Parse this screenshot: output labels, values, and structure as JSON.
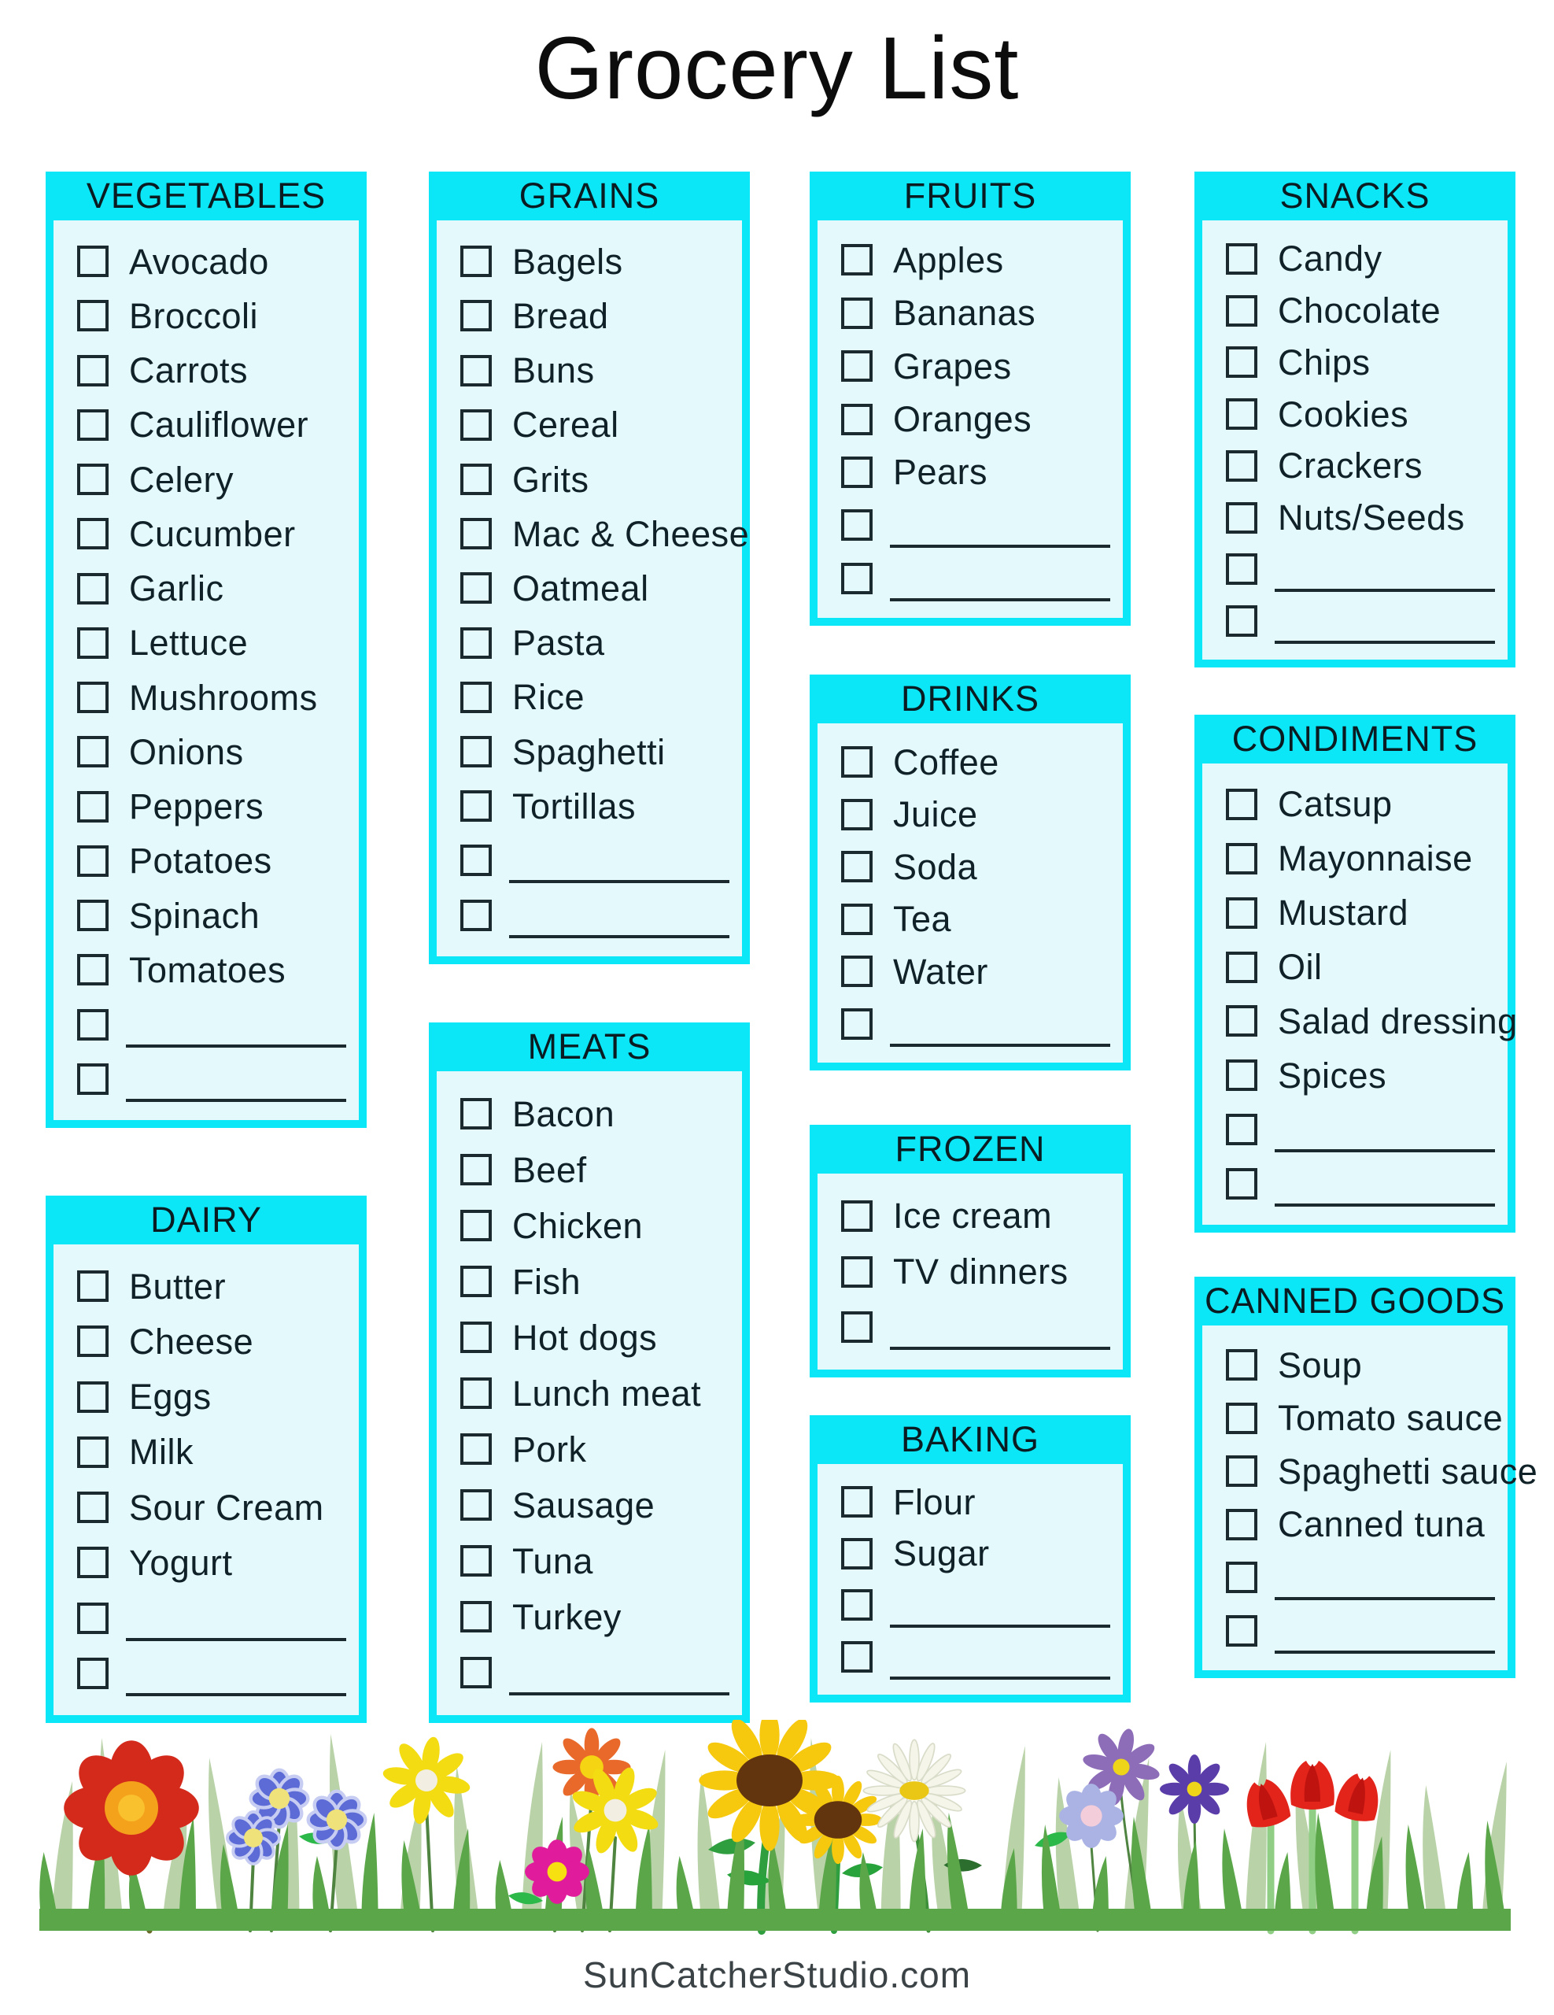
{
  "page": {
    "title": "Grocery List",
    "footer": "SunCatcherStudio.com"
  },
  "colors": {
    "accent_cyan": "#0be7f7",
    "panel_body": "#e3f9fc",
    "checkbox_ink": "#1b2a2f",
    "item_text": "#102227",
    "title_text": "#0c0c0c",
    "footer_text": "#3c4347",
    "grass_back": "#b9d2a8",
    "grass_front": "#5aa649",
    "flower_palette": [
      "#d42a1b",
      "#f4a21c",
      "#5c6bd6",
      "#e8692a",
      "#f3dc12",
      "#e01b9c",
      "#f6c80e",
      "#63350f",
      "#f5f5ea",
      "#8d6cb8",
      "#aab3e4",
      "#5a3da9",
      "#e3241b"
    ]
  },
  "icons": {
    "checkbox": "empty-square",
    "blank_line": "write-in-rule"
  },
  "categories": [
    {
      "name": "VEGETABLES",
      "items": [
        "Avocado",
        "Broccoli",
        "Carrots",
        "Cauliflower",
        "Celery",
        "Cucumber",
        "Garlic",
        "Lettuce",
        "Mushrooms",
        "Onions",
        "Peppers",
        "Potatoes",
        "Spinach",
        "Tomatoes"
      ],
      "blanks": 2
    },
    {
      "name": "DAIRY",
      "items": [
        "Butter",
        "Cheese",
        "Eggs",
        "Milk",
        "Sour Cream",
        "Yogurt"
      ],
      "blanks": 2
    },
    {
      "name": "GRAINS",
      "items": [
        "Bagels",
        "Bread",
        "Buns",
        "Cereal",
        "Grits",
        "Mac & Cheese",
        "Oatmeal",
        "Pasta",
        "Rice",
        "Spaghetti",
        "Tortillas"
      ],
      "blanks": 2
    },
    {
      "name": "MEATS",
      "items": [
        "Bacon",
        "Beef",
        "Chicken",
        "Fish",
        "Hot dogs",
        "Lunch meat",
        "Pork",
        "Sausage",
        "Tuna",
        "Turkey"
      ],
      "blanks": 1
    },
    {
      "name": "FRUITS",
      "items": [
        "Apples",
        "Bananas",
        "Grapes",
        "Oranges",
        "Pears"
      ],
      "blanks": 2
    },
    {
      "name": "DRINKS",
      "items": [
        "Coffee",
        "Juice",
        "Soda",
        "Tea",
        "Water"
      ],
      "blanks": 1
    },
    {
      "name": "FROZEN",
      "items": [
        "Ice cream",
        "TV dinners"
      ],
      "blanks": 1
    },
    {
      "name": "BAKING",
      "items": [
        "Flour",
        "Sugar"
      ],
      "blanks": 2
    },
    {
      "name": "SNACKS",
      "items": [
        "Candy",
        "Chocolate",
        "Chips",
        "Cookies",
        "Crackers",
        "Nuts/Seeds"
      ],
      "blanks": 2
    },
    {
      "name": "CONDIMENTS",
      "items": [
        "Catsup",
        "Mayonnaise",
        "Mustard",
        "Oil",
        "Salad dressing",
        "Spices"
      ],
      "blanks": 2
    },
    {
      "name": "CANNED GOODS",
      "items": [
        "Soup",
        "Tomato sauce",
        "Spaghetti sauce",
        "Canned tuna"
      ],
      "blanks": 2
    }
  ]
}
